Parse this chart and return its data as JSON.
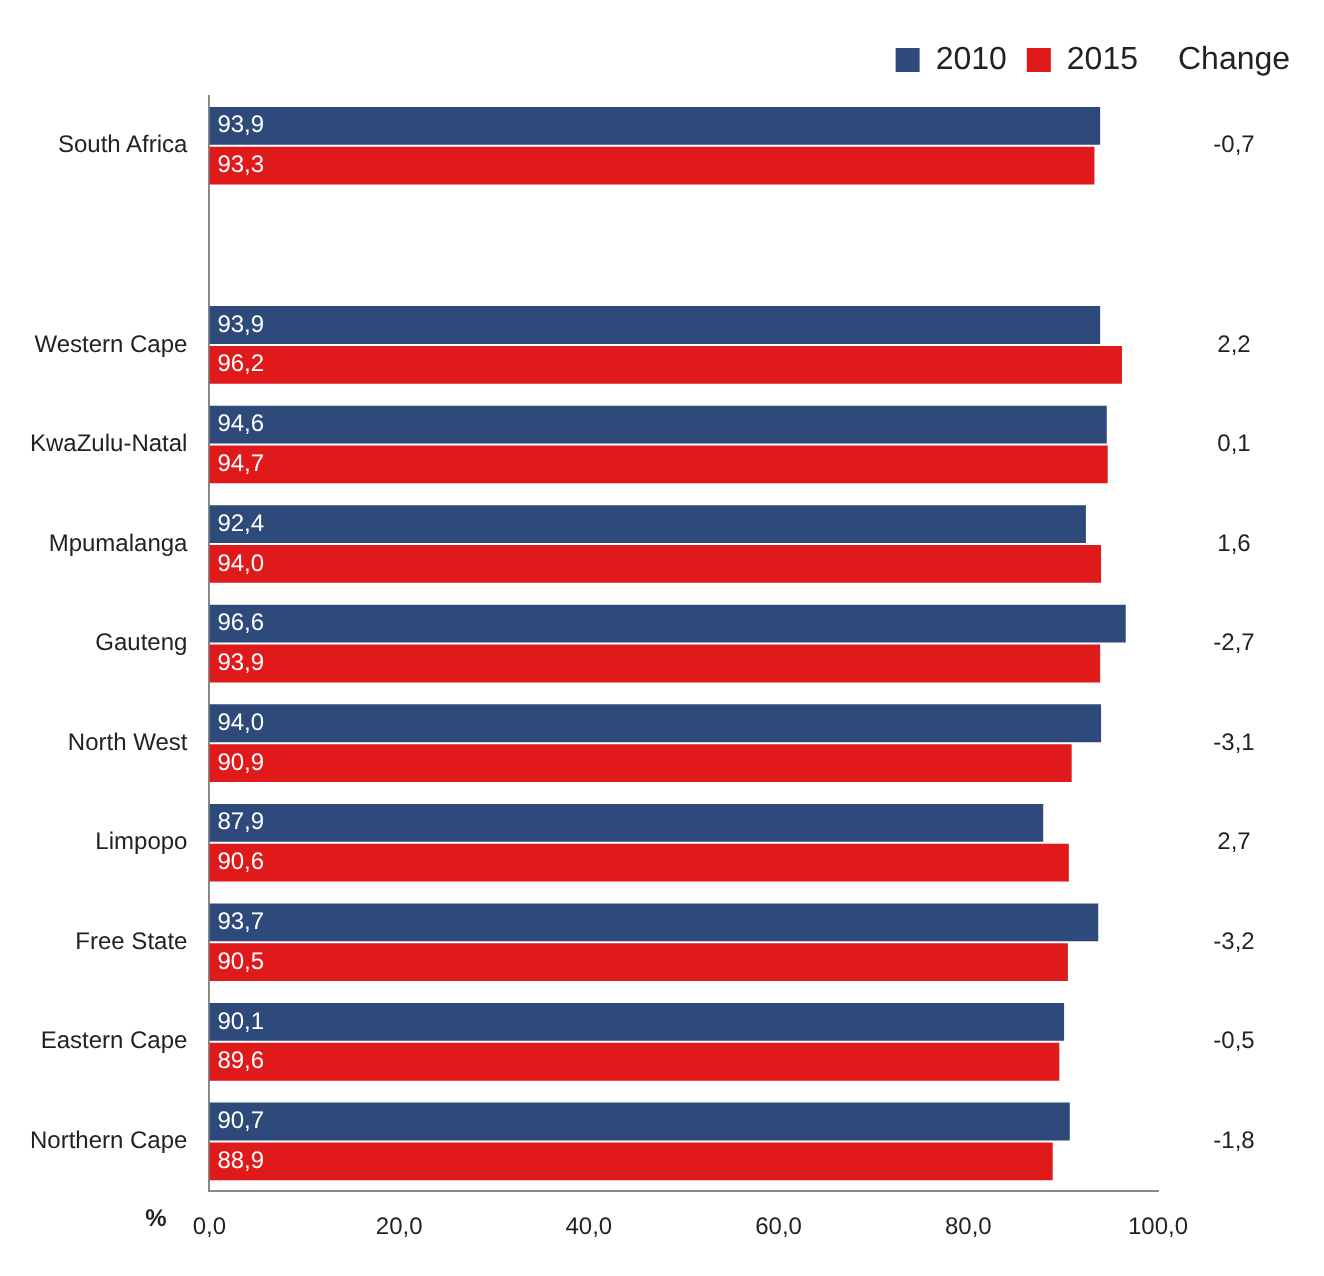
{
  "chart_data": {
    "type": "bar",
    "orientation": "horizontal",
    "xlabel": "%",
    "categories": [
      "South Africa",
      null,
      "Western Cape",
      "KwaZulu-Natal",
      "Mpumalanga",
      "Gauteng",
      "North West",
      "Limpopo",
      "Free State",
      "Eastern Cape",
      "Northern Cape"
    ],
    "series": [
      {
        "name": "2010",
        "color": "#2e4a7a",
        "values": [
          93.9,
          null,
          93.9,
          94.6,
          92.4,
          96.6,
          94.0,
          87.9,
          93.7,
          90.1,
          90.7
        ],
        "value_labels": [
          "93,9",
          null,
          "93,9",
          "94,6",
          "92,4",
          "96,6",
          "94,0",
          "87,9",
          "93,7",
          "90,1",
          "90,7"
        ]
      },
      {
        "name": "2015",
        "color": "#e0191b",
        "values": [
          93.3,
          null,
          96.2,
          94.7,
          94.0,
          93.9,
          90.9,
          90.6,
          90.5,
          89.6,
          88.9
        ],
        "value_labels": [
          "93,3",
          null,
          "96,2",
          "94,7",
          "94,0",
          "93,9",
          "90,9",
          "90,6",
          "90,5",
          "89,6",
          "88,9"
        ]
      }
    ],
    "xlim": [
      0,
      100
    ],
    "xticks": [
      {
        "value": 0,
        "label": "0,0"
      },
      {
        "value": 20,
        "label": "20,0"
      },
      {
        "value": 40,
        "label": "40,0"
      },
      {
        "value": 60,
        "label": "60,0"
      },
      {
        "value": 80,
        "label": "80,0"
      },
      {
        "value": 100,
        "label": "100,0"
      }
    ],
    "grid": false,
    "legend": "top right",
    "annotations": [
      "Change",
      "-0,7",
      "2,2",
      "0,1",
      "1,6",
      "-2,7",
      "-3,1",
      "2,7",
      "-3,2",
      "-0,5",
      "-1,8"
    ]
  }
}
